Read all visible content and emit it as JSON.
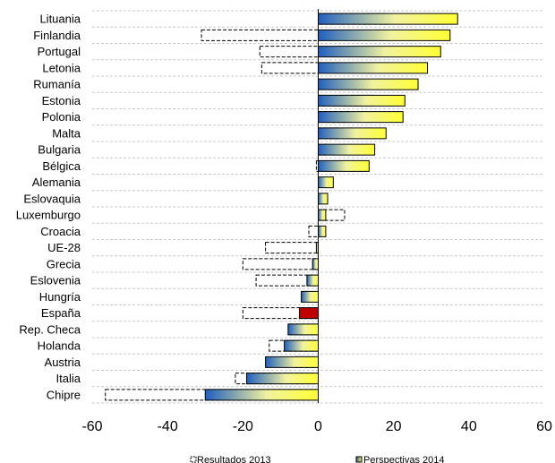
{
  "chart_data": {
    "type": "bar",
    "orientation": "horizontal",
    "categories": [
      "Lituania",
      "Finlandia",
      "Portugal",
      "Letonia",
      "Rumanía",
      "Estonia",
      "Polonia",
      "Malta",
      "Bulgaria",
      "Bélgica",
      "Alemania",
      "Eslovaquia",
      "Luxemburgo",
      "Croacia",
      "UE-28",
      "Grecia",
      "Eslovenia",
      "Hungría",
      "España",
      "Rep. Checa",
      "Holanda",
      "Austria",
      "Italia",
      "Chipre"
    ],
    "series": [
      {
        "name": "Resultados 2013",
        "style": "dashed-outline",
        "values": [
          18.5,
          -31,
          -15.5,
          -15,
          0,
          14.5,
          8,
          5.5,
          2.5,
          -0.5,
          0,
          0,
          7,
          -2.5,
          -14,
          -20,
          -16.5,
          0,
          -20,
          -7.5,
          -13,
          -6,
          -22,
          -56.5
        ]
      },
      {
        "name": "Perspectivas 2014",
        "style": "gradient-fill",
        "values": [
          37,
          35,
          32.5,
          29,
          26.5,
          23,
          22.5,
          18,
          15,
          13.5,
          4,
          2.5,
          2,
          2,
          -0.5,
          -1.5,
          -3,
          -4.5,
          -5,
          -8,
          -9,
          -14,
          -19,
          -30
        ]
      }
    ],
    "highlight": {
      "category": "España",
      "color": "#c00000"
    },
    "xlim": [
      -60,
      60
    ],
    "xticks": [
      "-60",
      "-40",
      "-20",
      "0",
      "20",
      "40",
      "60"
    ],
    "grid": true,
    "legend_position": "bottom",
    "colors": {
      "gradient_start": "#1f5fbf",
      "gradient_end": "#ffff33",
      "highlight": "#c00000",
      "grid": "#c8c8c8",
      "axis": "#000000"
    }
  },
  "legend": {
    "items": [
      "Resultados 2013",
      "Perspectivas 2014"
    ]
  }
}
